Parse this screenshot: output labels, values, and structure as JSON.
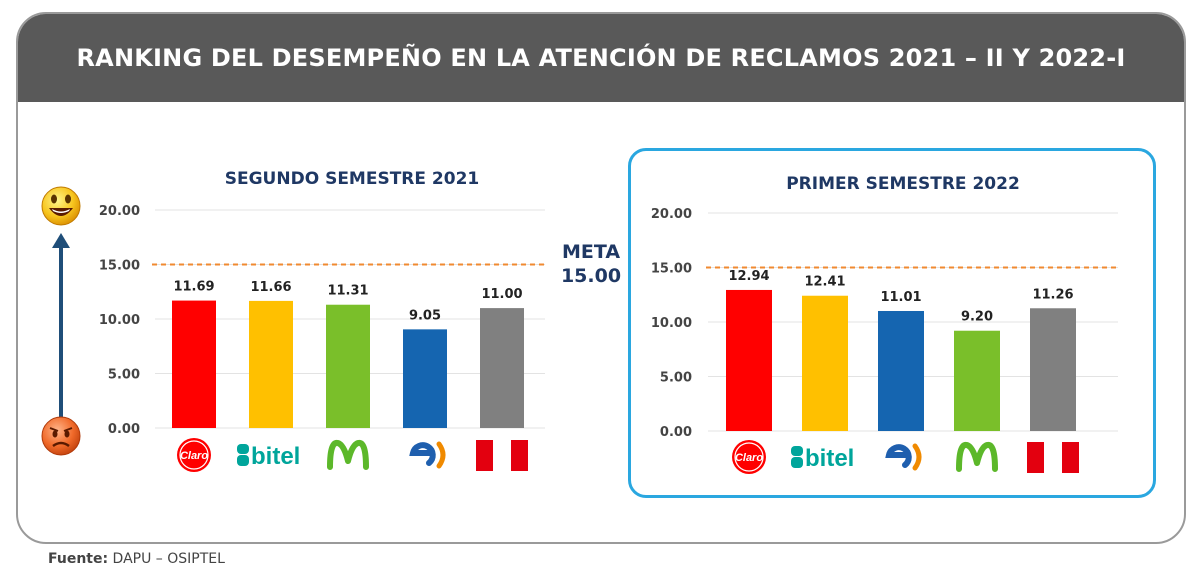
{
  "header": {
    "title": "RANKING DEL DESEMPEÑO EN LA ATENCIÓN DE RECLAMOS 2021 – II Y 2022-I"
  },
  "meta": {
    "label": "META",
    "value": "15.00"
  },
  "source": {
    "label": "Fuente:",
    "text": "DAPU – OSIPTEL"
  },
  "colors": {
    "claro": "#ff0000",
    "bitel": "#ffc000",
    "movistar": "#7abf2a",
    "entel": "#1565b0",
    "peru": "#808080",
    "target_line": "#f08a30",
    "title_blue": "#1f3864"
  },
  "chart_data": [
    {
      "type": "bar",
      "title": "SEGUNDO SEMESTRE 2021",
      "categories": [
        "Claro",
        "bitel",
        "Movistar",
        "entel",
        "Perú"
      ],
      "values": [
        11.69,
        11.66,
        11.31,
        9.05,
        11.0
      ],
      "value_labels": [
        "11.69",
        "11.66",
        "11.31",
        "9.05",
        "11.00"
      ],
      "bar_colors": [
        "#ff0000",
        "#ffc000",
        "#7abf2a",
        "#1565b0",
        "#808080"
      ],
      "ylim": [
        0,
        20
      ],
      "yticks": [
        "0.00",
        "5.00",
        "10.00",
        "15.00",
        "20.00"
      ],
      "target": 15.0,
      "grid": true
    },
    {
      "type": "bar",
      "title": "PRIMER SEMESTRE 2022",
      "categories": [
        "Claro",
        "bitel",
        "entel",
        "Movistar",
        "Perú"
      ],
      "values": [
        12.94,
        12.41,
        11.01,
        9.2,
        11.26
      ],
      "value_labels": [
        "12.94",
        "12.41",
        "11.01",
        "9.20",
        "11.26"
      ],
      "bar_colors": [
        "#ff0000",
        "#ffc000",
        "#1565b0",
        "#7abf2a",
        "#808080"
      ],
      "ylim": [
        0,
        20
      ],
      "yticks": [
        "0.00",
        "5.00",
        "10.00",
        "15.00",
        "20.00"
      ],
      "target": 15.0,
      "grid": true
    }
  ],
  "logos": {
    "claro": {
      "text": "Claro"
    },
    "bitel": {
      "text": "bitel"
    }
  }
}
